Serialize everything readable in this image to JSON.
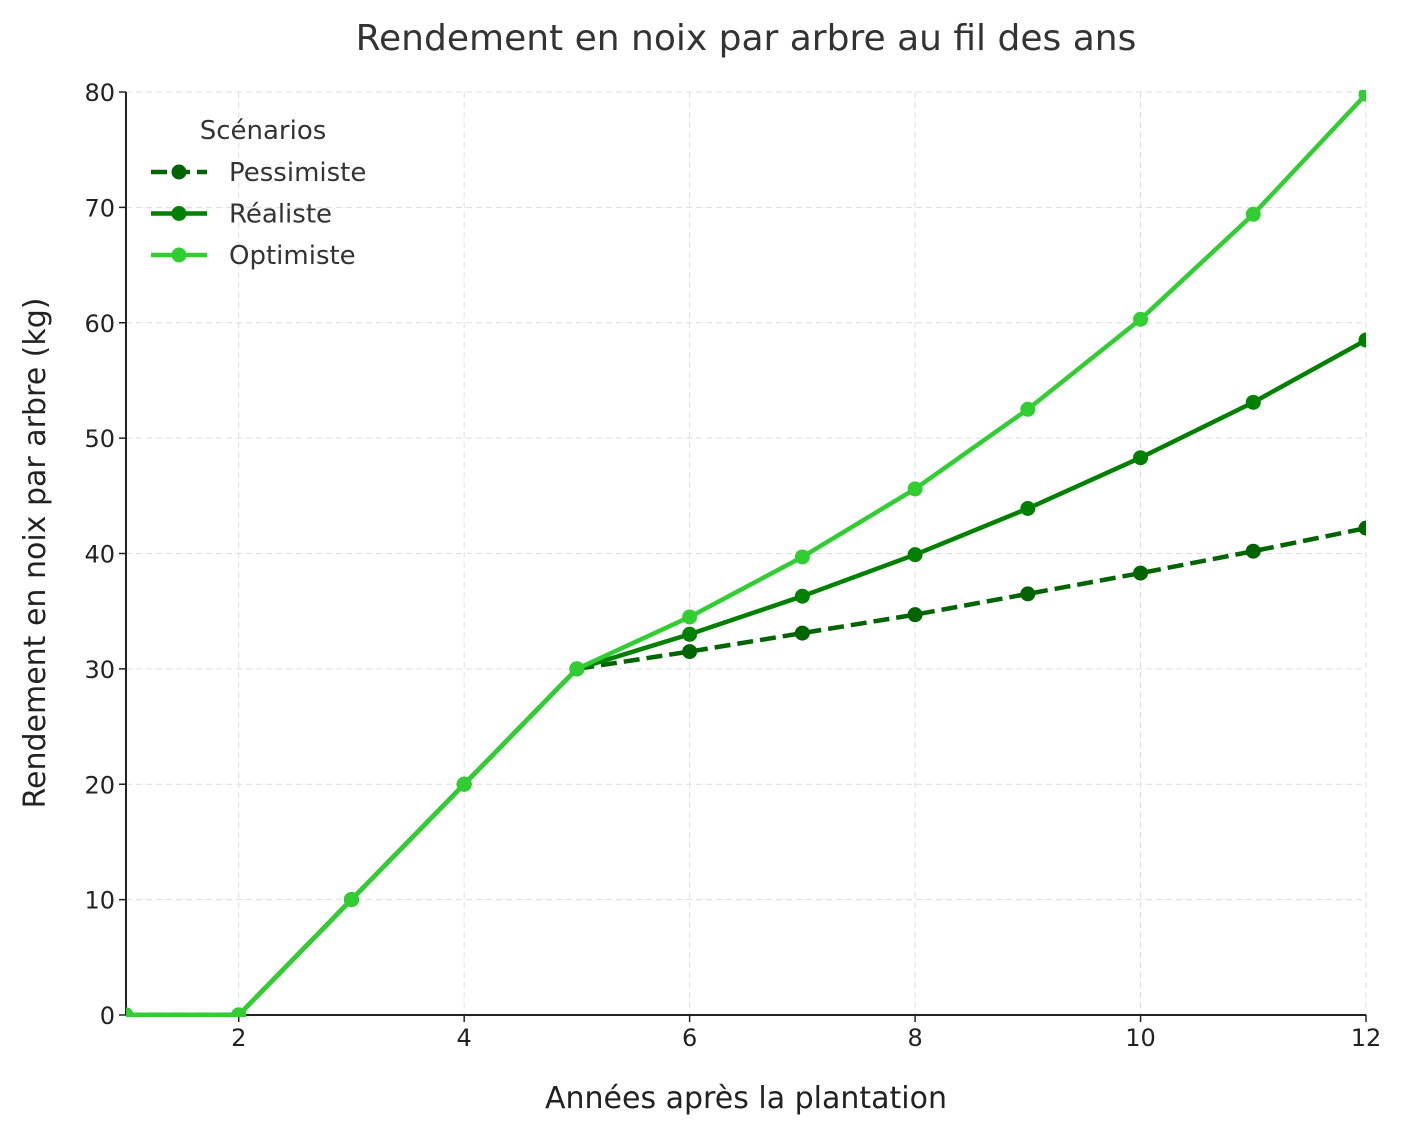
{
  "chart_data": {
    "type": "line",
    "title": "Rendement en noix par arbre au fil des ans",
    "xlabel": "Années après la plantation",
    "ylabel": "Rendement en noix par arbre (kg)",
    "xlim": [
      1,
      12
    ],
    "ylim": [
      0,
      80
    ],
    "x_ticks": [
      2,
      4,
      6,
      8,
      10,
      12
    ],
    "y_ticks": [
      0,
      10,
      20,
      30,
      40,
      50,
      60,
      70,
      80
    ],
    "grid": true,
    "legend": {
      "title": "Scénarios",
      "position": "top-left"
    },
    "x": [
      1,
      2,
      3,
      4,
      5,
      6,
      7,
      8,
      9,
      10,
      11,
      12
    ],
    "series": [
      {
        "name": "Pessimiste",
        "color": "#006400",
        "dashed": true,
        "values": [
          0,
          0,
          10,
          20,
          30,
          31.5,
          33.1,
          34.7,
          36.5,
          38.3,
          40.2,
          42.2
        ]
      },
      {
        "name": "Réaliste",
        "color": "#008000",
        "dashed": false,
        "values": [
          0,
          0,
          10,
          20,
          30,
          33.0,
          36.3,
          39.9,
          43.9,
          48.3,
          53.1,
          58.5
        ]
      },
      {
        "name": "Optimiste",
        "color": "#32CD32",
        "dashed": false,
        "values": [
          0,
          0,
          10,
          20,
          30,
          34.5,
          39.7,
          45.6,
          52.5,
          60.3,
          69.4,
          79.8
        ]
      }
    ]
  }
}
